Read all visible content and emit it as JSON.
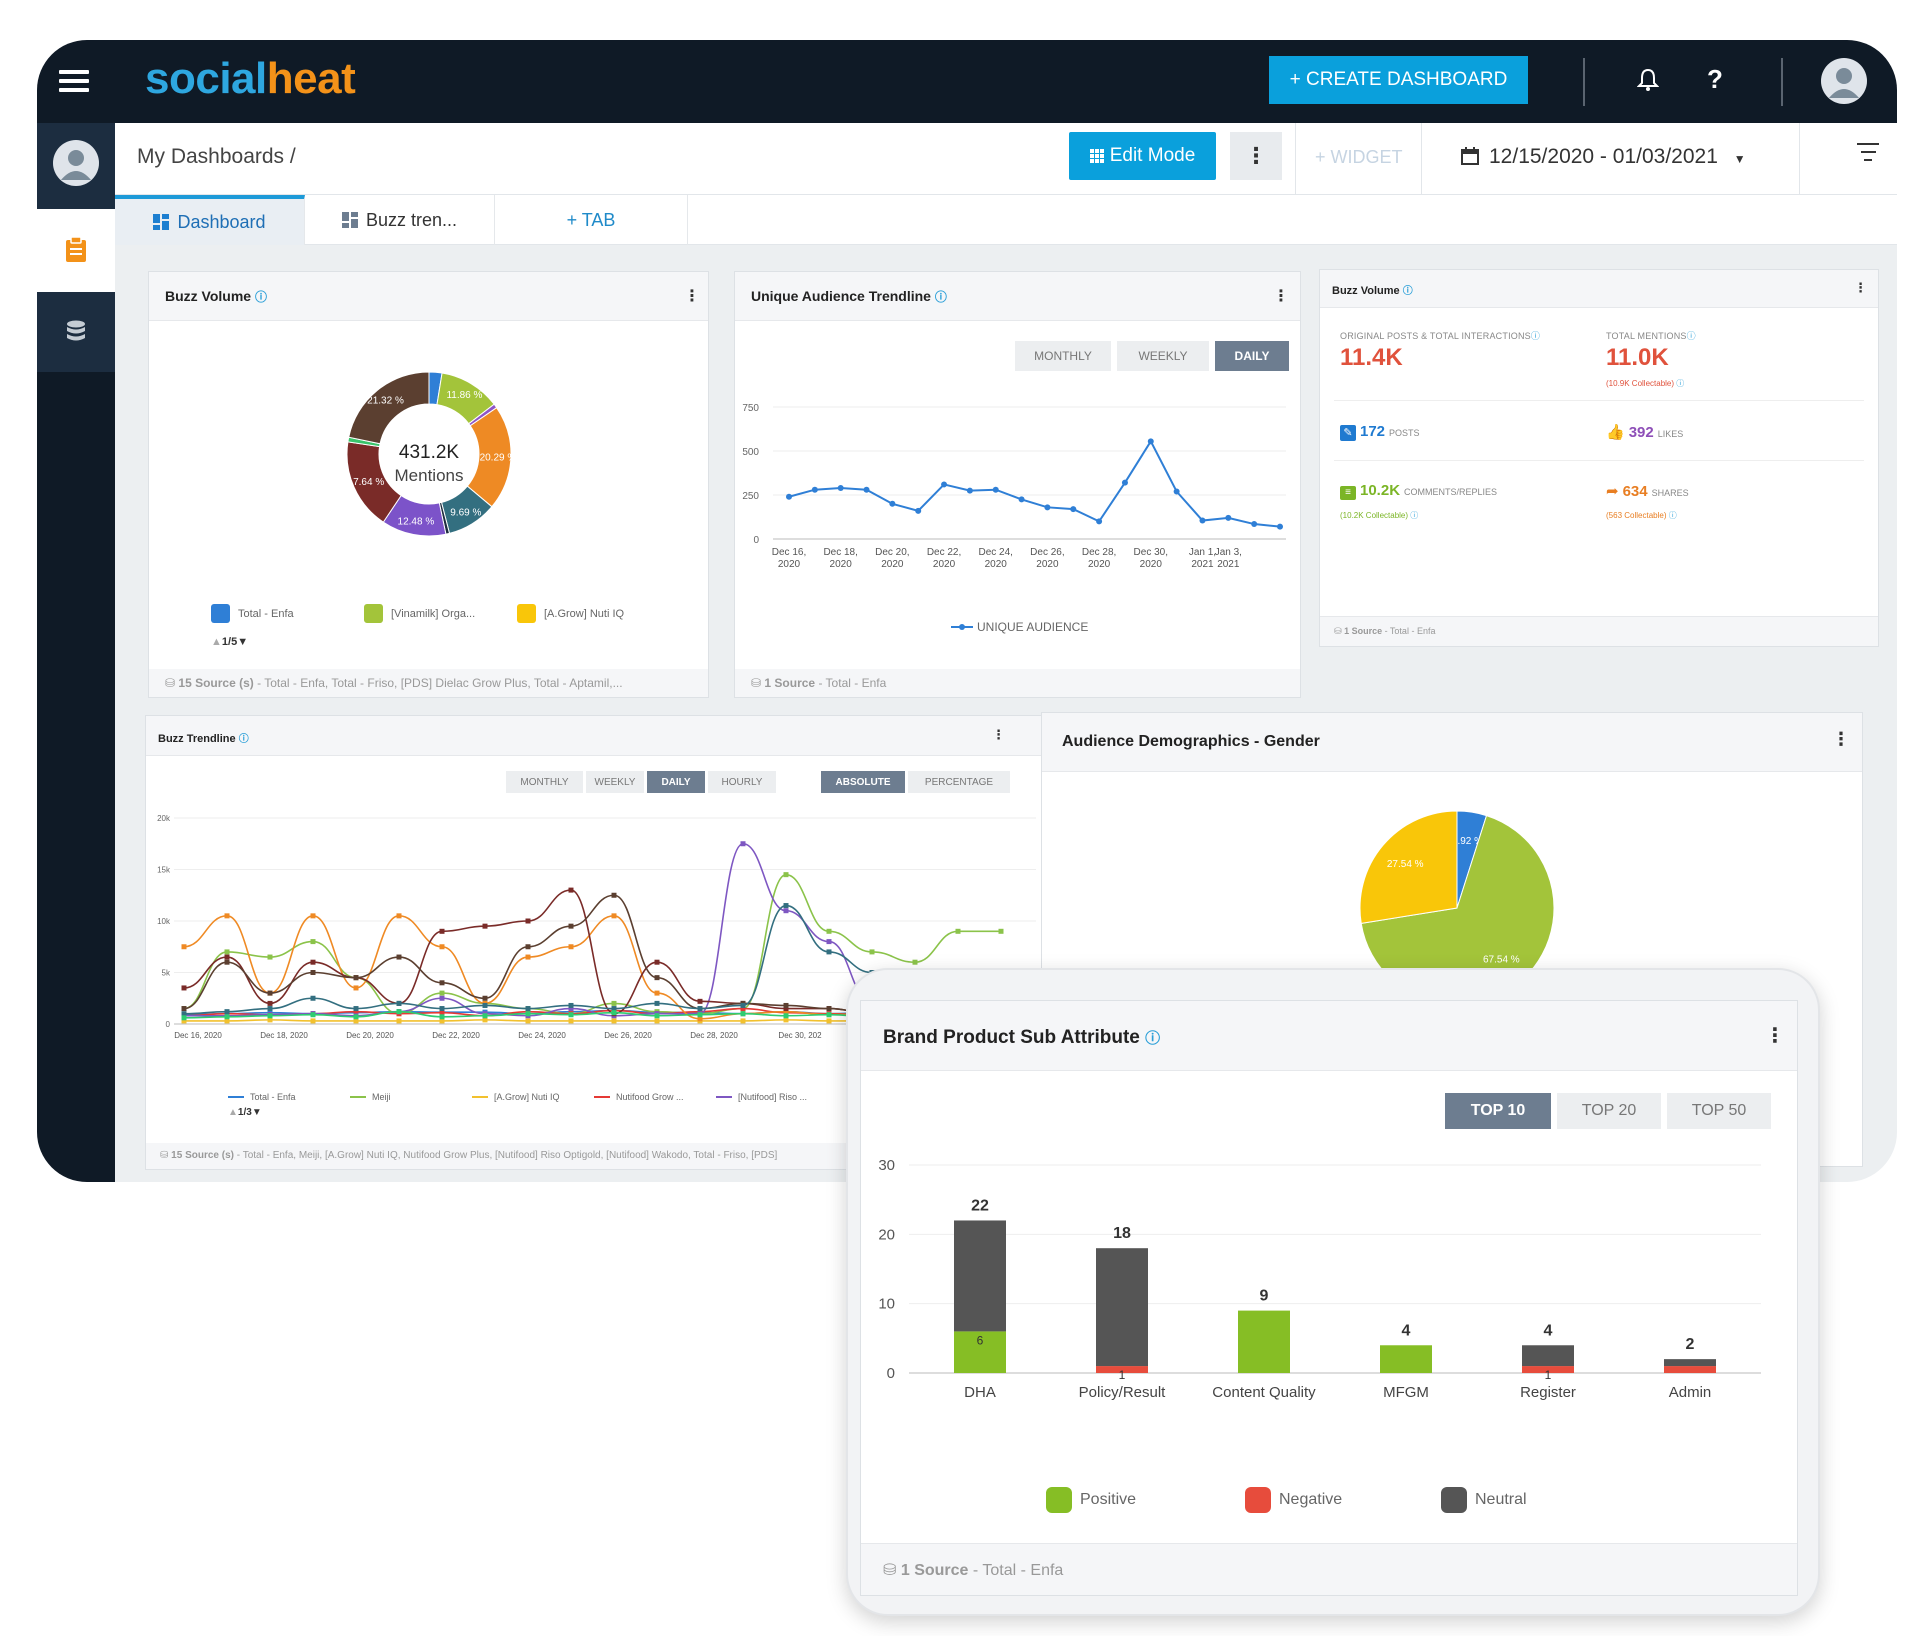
{
  "topbar": {
    "logo_part1": "social",
    "logo_part2": "heat",
    "create_label": "+ CREATE DASHBOARD",
    "bell_icon": "bell-icon",
    "help_label": "?",
    "accent": "#0aa0dc"
  },
  "header": {
    "breadcrumb": "My Dashboards /",
    "edit_label": "Edit Mode",
    "more_label": "⋮",
    "widget_label": "+ WIDGET",
    "date_range": "12/15/2020 - 01/03/2021"
  },
  "tabs": [
    {
      "label": "Dashboard"
    },
    {
      "label": "Buzz tren..."
    },
    {
      "label": "+ TAB"
    }
  ],
  "buzz_volume_donut": {
    "title": "Buzz Volume",
    "center_value": "431.2K",
    "center_label": "Mentions",
    "legend": [
      "Total - Enfa",
      "[Vinamilk] Orga...",
      "[A.Grow] Nuti IQ"
    ],
    "pager": "1/5",
    "footer_bold": "15 Source (s)",
    "footer_rest": " - Total - Enfa, Total - Friso, [PDS] Dielac Grow Plus, Total - Aptamil,..."
  },
  "unique_audience": {
    "title": "Unique Audience Trendline",
    "buttons": [
      "MONTHLY",
      "WEEKLY",
      "DAILY"
    ],
    "active": "DAILY",
    "legend": "UNIQUE AUDIENCE",
    "footer_bold": "1 Source",
    "footer_rest": " - Total - Enfa",
    "y_ticks": [
      "750",
      "500",
      "250",
      "0"
    ],
    "x_ticks": [
      [
        "Dec 16,",
        "2020"
      ],
      [
        "Dec 18,",
        "2020"
      ],
      [
        "Dec 20,",
        "2020"
      ],
      [
        "Dec 22,",
        "2020"
      ],
      [
        "Dec 24,",
        "2020"
      ],
      [
        "Dec 26,",
        "2020"
      ],
      [
        "Dec 28,",
        "2020"
      ],
      [
        "Dec 30,",
        "2020"
      ],
      [
        "Jan 1,",
        "2021"
      ],
      [
        "Jan 3,",
        "2021"
      ]
    ]
  },
  "buzz_volume_kpi": {
    "title": "Buzz Volume",
    "left_label": "ORIGINAL POSTS & TOTAL INTERACTIONS",
    "left_value": "11.4K",
    "right_label": "TOTAL MENTIONS",
    "right_value": "11.0K",
    "right_sub": "(10.9K Collectable)",
    "posts_value": "172",
    "posts_label": "POSTS",
    "likes_value": "392",
    "likes_label": "LIKES",
    "comments_value": "10.2K",
    "comments_label": "COMMENTS/REPLIES",
    "comments_sub": "(10.2K Collectable)",
    "shares_value": "634",
    "shares_label": "SHARES",
    "shares_sub": "(563 Collectable)",
    "footer_bold": "1 Source",
    "footer_rest": " - Total - Enfa"
  },
  "buzz_trendline": {
    "title": "Buzz Trendline",
    "buttons": [
      "MONTHLY",
      "WEEKLY",
      "DAILY",
      "HOURLY"
    ],
    "active": "DAILY",
    "mode_buttons": [
      "ABSOLUTE",
      "PERCENTAGE"
    ],
    "mode_active": "ABSOLUTE",
    "y_ticks": [
      "20k",
      "15k",
      "10k",
      "5k",
      "0"
    ],
    "x_ticks": [
      "Dec 16, 2020",
      "Dec 18, 2020",
      "Dec 20, 2020",
      "Dec 22, 2020",
      "Dec 24, 2020",
      "Dec 26, 2020",
      "Dec 28, 2020",
      "Dec 30, 202"
    ],
    "legend": [
      "Total - Enfa",
      "Meiji",
      "[A.Grow] Nuti IQ",
      "Nutifood Grow ...",
      "[Nutifood] Riso ..."
    ],
    "pager": "1/3",
    "footer_bold": "15 Source (s)",
    "footer_rest": " - Total - Enfa, Meiji, [A.Grow] Nuti IQ, Nutifood Grow Plus, [Nutifood] Riso Optigold, [Nutifood] Wakodo, Total - Friso, [PDS]"
  },
  "gender": {
    "title": "Audience Demographics - Gender",
    "labels": [
      "4.92 %",
      "27.54 %",
      "67.54 %"
    ]
  },
  "brand_product": {
    "title": "Brand Product Sub Attribute",
    "buttons": [
      "TOP 10",
      "TOP 20",
      "TOP 50"
    ],
    "active": "TOP 10",
    "legend": [
      "Positive",
      "Negative",
      "Neutral"
    ],
    "footer_bold": "1 Source",
    "footer_rest": " - Total - Enfa"
  },
  "chart_data": [
    {
      "type": "pie",
      "title": "Buzz Volume",
      "slices": [
        {
          "label": "",
          "value": 2.5,
          "color": "#2f7fd6"
        },
        {
          "label": "11.86 %",
          "value": 11.86,
          "color": "#a3c43a"
        },
        {
          "label": "",
          "value": 0.8,
          "color": "#8e56c7"
        },
        {
          "label": "20.29 %",
          "value": 20.29,
          "color": "#ee8a24"
        },
        {
          "label": "9.69 %",
          "value": 9.69,
          "color": "#336f80"
        },
        {
          "label": "",
          "value": 0.7,
          "color": "#1e2e40"
        },
        {
          "label": "12.48 %",
          "value": 12.48,
          "color": "#7c53c9"
        },
        {
          "label": "17.64 %",
          "value": 17.64,
          "color": "#7a2b28"
        },
        {
          "label": "",
          "value": 0.9,
          "color": "#3ac46b"
        },
        {
          "label": "21.32 %",
          "value": 21.32,
          "color": "#5b3f30"
        }
      ]
    },
    {
      "type": "line",
      "title": "Unique Audience Trendline",
      "ylim": [
        0,
        750
      ],
      "series": [
        {
          "name": "UNIQUE AUDIENCE",
          "color": "#2f7fd6",
          "values": [
            240,
            280,
            290,
            280,
            200,
            160,
            310,
            275,
            280,
            225,
            180,
            170,
            100,
            320,
            555,
            270,
            105,
            120,
            85,
            70
          ]
        }
      ]
    },
    {
      "type": "line",
      "title": "Buzz Trendline",
      "ylim": [
        0,
        20000
      ],
      "series": [
        {
          "name": "Total - Enfa",
          "color": "#2f7fd6",
          "values": [
            900,
            1000,
            1100,
            1000,
            1100,
            1200,
            1150,
            1150,
            1000,
            1200,
            1300,
            1150,
            1100,
            1000,
            1200,
            1000,
            1100,
            1000,
            900,
            800
          ]
        },
        {
          "name": "Meiji",
          "color": "#8bc34a",
          "values": [
            1500,
            7000,
            6500,
            8000,
            4500,
            1000,
            3000,
            2000,
            1500,
            1000,
            2000,
            1200,
            1000,
            1500,
            14500,
            9000,
            7000,
            6000,
            9000,
            9000
          ]
        },
        {
          "name": "[A.Grow] Nuti IQ",
          "color": "#f2c12e",
          "values": [
            300,
            300,
            400,
            300,
            300,
            300,
            300,
            400,
            300,
            300,
            300,
            300,
            300,
            300,
            400,
            300,
            300,
            300,
            300,
            300
          ]
        },
        {
          "name": "Nutifood Grow ...",
          "color": "#e53935",
          "values": [
            800,
            1000,
            900,
            1000,
            1200,
            1000,
            1100,
            800,
            1200,
            1000,
            1300,
            1000,
            1200,
            1500,
            1100,
            1000,
            900,
            800,
            1000,
            900
          ]
        },
        {
          "name": "[Nutifood] Riso ...",
          "color": "#7e57c2",
          "values": [
            800,
            800,
            900,
            1000,
            800,
            1200,
            2500,
            1000,
            800,
            1500,
            800,
            1000,
            1000,
            17500,
            11000,
            8000,
            2000,
            1000,
            1200,
            1000
          ]
        },
        {
          "name": "",
          "color": "#ef8a24",
          "values": [
            7500,
            10500,
            3000,
            10500,
            3500,
            10500,
            7500,
            2000,
            6500,
            7500,
            10500,
            3000,
            500,
            1000,
            1200,
            900,
            1000,
            800,
            1000,
            900
          ]
        },
        {
          "name": "",
          "color": "#7a2b28",
          "values": [
            3500,
            6500,
            2000,
            6000,
            4500,
            2000,
            9000,
            9500,
            10000,
            13000,
            1000,
            6000,
            2200,
            2000,
            1500,
            1500,
            1000,
            1200,
            900,
            1000
          ]
        },
        {
          "name": "",
          "color": "#5b3f30",
          "values": [
            1500,
            6000,
            3000,
            5000,
            4500,
            6500,
            4000,
            2500,
            7500,
            9500,
            12500,
            4500,
            1500,
            2000,
            1800,
            1500,
            1000,
            1000,
            900,
            1000
          ]
        },
        {
          "name": "",
          "color": "#336f80",
          "values": [
            1000,
            1200,
            1500,
            2500,
            1500,
            2000,
            1500,
            1800,
            1500,
            1800,
            1500,
            2000,
            1500,
            1800,
            11500,
            7000,
            5000,
            2000,
            1500,
            1500
          ]
        },
        {
          "name": "",
          "color": "#2ecc71",
          "values": [
            600,
            700,
            800,
            900,
            700,
            1200,
            700,
            800,
            1000,
            900,
            1100,
            800,
            900,
            1000,
            800,
            900,
            700,
            800,
            900,
            800
          ]
        }
      ]
    },
    {
      "type": "pie",
      "title": "Audience Demographics - Gender",
      "slices": [
        {
          "label": "4.92 %",
          "value": 4.92,
          "color": "#2f7fd6"
        },
        {
          "label": "67.54 %",
          "value": 67.54,
          "color": "#a3c43a"
        },
        {
          "label": "27.54 %",
          "value": 27.54,
          "color": "#f9c609"
        }
      ]
    },
    {
      "type": "bar",
      "title": "Brand Product Sub Attribute",
      "categories": [
        "DHA",
        "Policy/Result",
        "Content Quality",
        "MFGM",
        "Register",
        "Admin"
      ],
      "ylim": [
        0,
        30
      ],
      "y_ticks": [
        0,
        10,
        20,
        30
      ],
      "totals": [
        22,
        18,
        9,
        4,
        4,
        2
      ],
      "series": [
        {
          "name": "Positive",
          "color": "#86be25",
          "values": [
            6,
            0,
            9,
            4,
            0,
            0
          ]
        },
        {
          "name": "Negative",
          "color": "#e74c3c",
          "values": [
            0,
            1,
            0,
            0,
            1,
            1
          ]
        },
        {
          "name": "Neutral",
          "color": "#555555",
          "values": [
            16,
            17,
            0,
            0,
            3,
            1
          ]
        }
      ],
      "segment_labels": [
        [
          "6",
          "",
          ""
        ],
        [
          "",
          "1",
          ""
        ],
        [
          "",
          "",
          ""
        ],
        [
          "",
          "",
          ""
        ],
        [
          "",
          "1",
          ""
        ],
        [
          "",
          "",
          ""
        ]
      ]
    }
  ]
}
